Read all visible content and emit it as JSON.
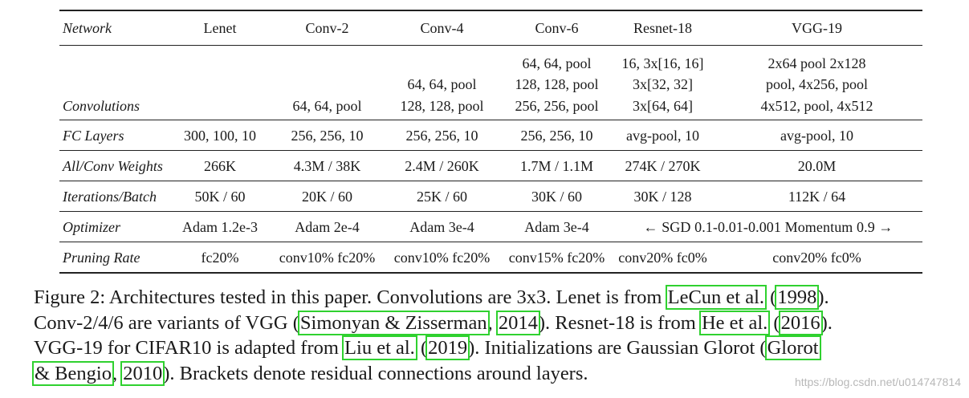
{
  "table": {
    "headers": [
      "Network",
      "Lenet",
      "Conv-2",
      "Conv-4",
      "Conv-6",
      "Resnet-18",
      "VGG-19"
    ],
    "convolutions": {
      "label": "Convolutions",
      "lenet": "",
      "conv2": [
        "64, 64, pool"
      ],
      "conv4": [
        "64, 64, pool",
        "128, 128, pool"
      ],
      "conv6": [
        "64, 64, pool",
        "128, 128, pool",
        "256, 256, pool"
      ],
      "resnet18": [
        "16, 3x[16, 16]",
        "3x[32, 32]",
        "3x[64, 64]"
      ],
      "vgg19": [
        "2x64 pool 2x128",
        "pool, 4x256, pool",
        "4x512, pool, 4x512"
      ]
    },
    "rows": [
      {
        "label": "FC Layers",
        "cells": [
          "300, 100, 10",
          "256, 256, 10",
          "256, 256, 10",
          "256, 256, 10",
          "avg-pool, 10",
          "avg-pool, 10"
        ]
      },
      {
        "label": "All/Conv Weights",
        "cells": [
          "266K",
          "4.3M / 38K",
          "2.4M / 260K",
          "1.7M / 1.1M",
          "274K / 270K",
          "20.0M"
        ]
      },
      {
        "label": "Iterations/Batch",
        "cells": [
          "50K / 60",
          "20K / 60",
          "25K / 60",
          "30K / 60",
          "30K / 128",
          "112K / 64"
        ]
      },
      {
        "label": "Pruning Rate",
        "cells": [
          "fc20%",
          "conv10% fc20%",
          "conv10% fc20%",
          "conv15% fc20%",
          "conv20% fc0%",
          "conv20% fc0%"
        ]
      }
    ],
    "optimizer": {
      "label": "Optimizer",
      "cells": [
        "Adam 1.2e-3",
        "Adam 2e-4",
        "Adam 3e-4",
        "Adam 3e-4"
      ],
      "span": "← SGD 0.1-0.01-0.001 Momentum 0.9 →"
    }
  },
  "caption": {
    "l1_a": "Figure 2: Architectures tested in this paper. Convolutions are 3x3. Lenet is from ",
    "l1_cite1": "LeCun et al.",
    "l1_b": " (",
    "l1_cite2": "1998",
    "l1_c": ").",
    "l2_a": "Conv-2/4/6 are variants of VGG (",
    "l2_cite1": "Simonyan & Zisserman",
    "l2_b": ", ",
    "l2_cite2": "2014",
    "l2_c": "). Resnet-18 is from ",
    "l2_cite3": "He et al.",
    "l2_d": " (",
    "l2_cite4": "2016",
    "l2_e": ").",
    "l3_a": "VGG-19 for CIFAR10 is adapted from ",
    "l3_cite1": "Liu et al.",
    "l3_b": " (",
    "l3_cite2": "2019",
    "l3_c": "). Initializations are Gaussian Glorot (",
    "l3_cite3": "Glorot",
    "l4_cite1": "& Bengio",
    "l4_a": ", ",
    "l4_cite2": "2010",
    "l4_b": "). Brackets denote residual connections around layers."
  },
  "watermark": "https://blog.csdn.net/u014747814",
  "colors": {
    "citation_box": "#2fd12f",
    "text": "#1a1a1a",
    "watermark": "#b8b8b8"
  }
}
